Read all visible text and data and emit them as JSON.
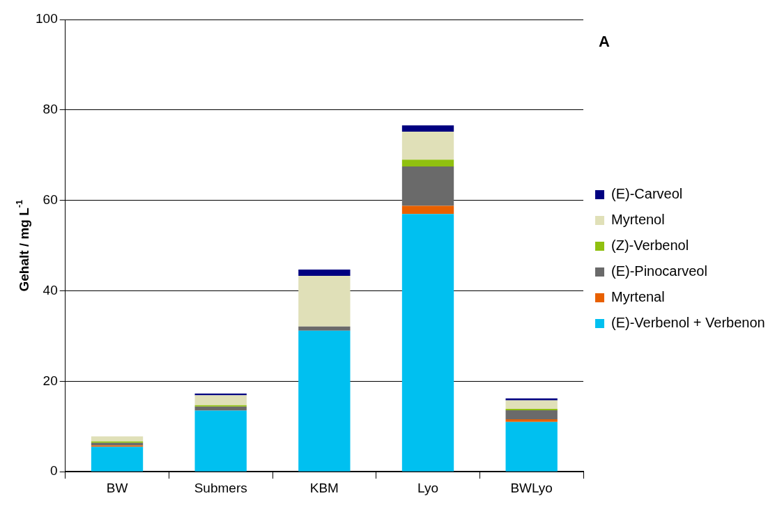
{
  "chart_data": {
    "type": "bar",
    "title": "A",
    "ylabel": "Gehalt / mg L$^{-1}$",
    "categories": [
      "BW",
      "Submers",
      "KBM",
      "Lyo",
      "BWLyo"
    ],
    "stacked": true,
    "series": [
      {
        "name": "(E)-Verbenol + Verbenon",
        "color": "#00c0f0",
        "values": [
          5.5,
          13.5,
          31.2,
          57.0,
          11.0
        ]
      },
      {
        "name": "Myrtenal",
        "color": "#e86000",
        "values": [
          0.3,
          0,
          0,
          1.8,
          0.6
        ]
      },
      {
        "name": "(E)-Pinocarveol",
        "color": "#6a6a6a",
        "values": [
          0.6,
          0.9,
          0.9,
          8.7,
          2.0
        ]
      },
      {
        "name": "(Z)-Verbenol",
        "color": "#90c010",
        "values": [
          0.3,
          0.3,
          0,
          1.5,
          0.3
        ]
      },
      {
        "name": "Myrtenol",
        "color": "#e0e0b8",
        "values": [
          1.1,
          2.2,
          11.2,
          6.2,
          1.9
        ]
      },
      {
        "name": "(E)-Carveol",
        "color": "#000080",
        "values": [
          0,
          0.4,
          1.4,
          1.4,
          0.4
        ]
      }
    ],
    "ylim": [
      0,
      100
    ],
    "yticks": [
      0,
      20,
      40,
      60,
      80,
      100
    ],
    "grid": "y",
    "legend": "right"
  }
}
